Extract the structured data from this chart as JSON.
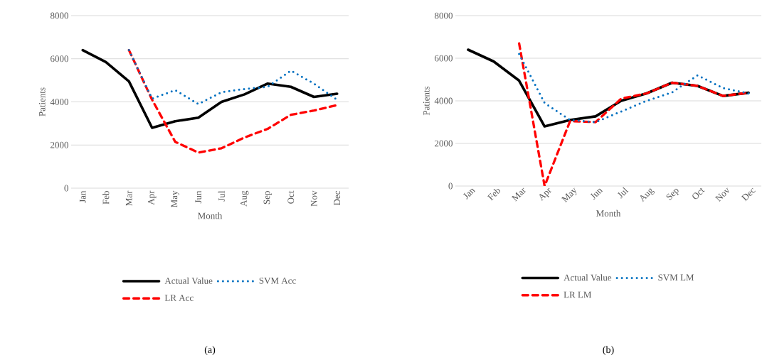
{
  "chart_data": [
    {
      "type": "line",
      "xlabel": "Month",
      "ylabel": "Patients",
      "categories": [
        "Jan",
        "Feb",
        "Mar",
        "Apr",
        "May",
        "Jun",
        "Jul",
        "Aug",
        "Sep",
        "Oct",
        "Nov",
        "Dec"
      ],
      "ylim": [
        0,
        8000
      ],
      "yticks": [
        0,
        2000,
        4000,
        6000,
        8000
      ],
      "grid": "y",
      "legend": "bottom",
      "marker": "none",
      "annotations": [
        "(a)"
      ],
      "series": [
        {
          "name": "Actual Value",
          "color": "#000000",
          "line_style": "solid",
          "values": [
            6400,
            5850,
            4950,
            2800,
            3100,
            3270,
            4000,
            4350,
            4850,
            4700,
            4230,
            4380
          ]
        },
        {
          "name": "SVM Acc",
          "color": "#0070c0",
          "line_style": "dotted",
          "values": [
            null,
            null,
            6400,
            4150,
            4550,
            3900,
            4450,
            4600,
            4700,
            5450,
            4850,
            4100
          ]
        },
        {
          "name": "LR Acc",
          "color": "#ff0000",
          "line_style": "dashed",
          "values": [
            null,
            null,
            6400,
            4100,
            2150,
            1650,
            1850,
            2350,
            2750,
            3400,
            3600,
            3850
          ]
        }
      ]
    },
    {
      "type": "line",
      "xlabel": "Month",
      "ylabel": "Patients",
      "categories": [
        "Jan",
        "Feb",
        "Mar",
        "Apr",
        "May",
        "Jun",
        "Jul",
        "Aug",
        "Sep",
        "Oct",
        "Nov",
        "Dec"
      ],
      "ylim": [
        0,
        8000
      ],
      "yticks": [
        0,
        2000,
        4000,
        6000,
        8000
      ],
      "grid": "y",
      "legend": "bottom",
      "marker": "none",
      "annotations": [
        "(b)"
      ],
      "series": [
        {
          "name": "Actual Value",
          "color": "#000000",
          "line_style": "solid",
          "values": [
            6400,
            5850,
            4950,
            2800,
            3100,
            3270,
            4000,
            4350,
            4850,
            4700,
            4230,
            4380
          ]
        },
        {
          "name": "SVM LM",
          "color": "#0070c0",
          "line_style": "dotted",
          "values": [
            null,
            null,
            6200,
            3900,
            3100,
            3000,
            3500,
            4000,
            4400,
            5200,
            4600,
            4350
          ]
        },
        {
          "name": "LR LM",
          "color": "#ff0000",
          "line_style": "dashed",
          "values": [
            null,
            null,
            6700,
            0,
            3050,
            3000,
            4100,
            4350,
            4850,
            4700,
            4230,
            4380
          ]
        }
      ]
    }
  ]
}
